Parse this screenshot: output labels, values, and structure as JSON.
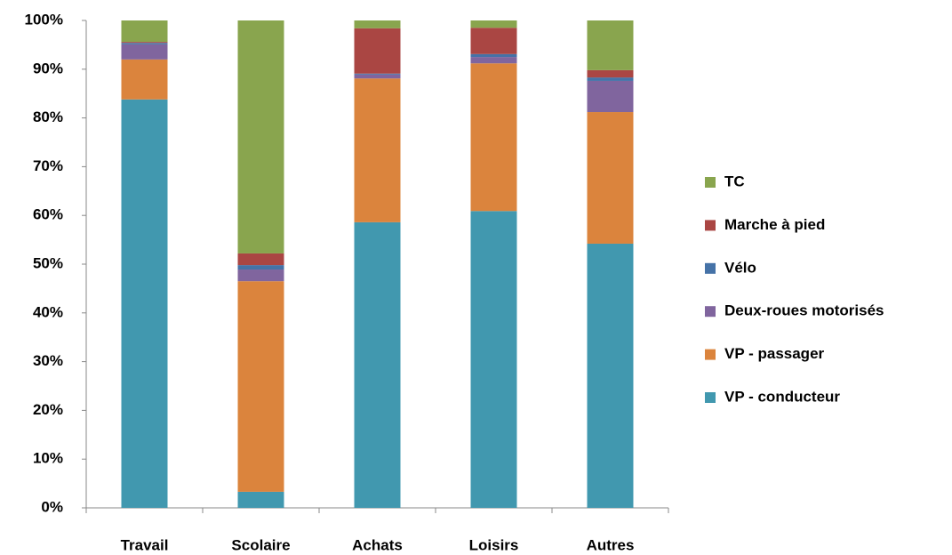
{
  "chart_data": {
    "type": "stacked_bar",
    "categories": [
      "Travail",
      "Scolaire",
      "Achats",
      "Loisirs",
      "Autres"
    ],
    "series": [
      {
        "name": "VP - conducteur",
        "color": "#4198af",
        "values": [
          83.8,
          3.3,
          58.6,
          60.9,
          54.2
        ]
      },
      {
        "name": "VP - passager",
        "color": "#db843d",
        "values": [
          8.2,
          43.2,
          29.5,
          30.3,
          27.0
        ]
      },
      {
        "name": "Deux-roues motorisés",
        "color": "#80659e",
        "values": [
          3.1,
          2.4,
          0.8,
          1.3,
          6.4
        ]
      },
      {
        "name": "Vélo",
        "color": "#4572a7",
        "values": [
          0.3,
          0.9,
          0.2,
          0.6,
          0.7
        ]
      },
      {
        "name": "Marche à pied",
        "color": "#aa4643",
        "values": [
          0.2,
          2.4,
          9.3,
          5.4,
          1.5
        ]
      },
      {
        "name": "TC",
        "color": "#89a54e",
        "values": [
          4.4,
          47.8,
          1.6,
          1.5,
          10.2
        ]
      }
    ],
    "ylim": [
      0,
      100
    ],
    "yticks": [
      {
        "value": 0,
        "label": "0%"
      },
      {
        "value": 10,
        "label": "10%"
      },
      {
        "value": 20,
        "label": "20%"
      },
      {
        "value": 30,
        "label": "30%"
      },
      {
        "value": 40,
        "label": "40%"
      },
      {
        "value": 50,
        "label": "50%"
      },
      {
        "value": 60,
        "label": "60%"
      },
      {
        "value": 70,
        "label": "70%"
      },
      {
        "value": 80,
        "label": "80%"
      },
      {
        "value": 90,
        "label": "90%"
      },
      {
        "value": 100,
        "label": "100%"
      }
    ],
    "legend": "right",
    "grid": false
  }
}
